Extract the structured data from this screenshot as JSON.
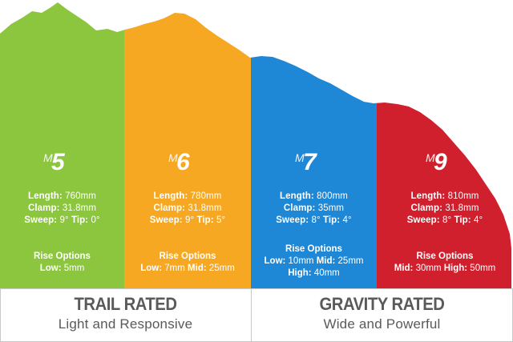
{
  "colors": {
    "m5": "#8cc63f",
    "m6": "#f7a823",
    "m7": "#1f88d6",
    "m9": "#d0202e"
  },
  "models": [
    {
      "id": "m5",
      "digit": "5",
      "specs": [
        {
          "label": "Length:",
          "value": " 760mm"
        },
        {
          "label": "Clamp:",
          "value": " 31.8mm"
        },
        {
          "label": "Sweep:",
          "value": " 9°",
          "label2": " Tip:",
          "value2": " 0°"
        }
      ],
      "rise_title": "Rise Options",
      "rise_lines": [
        [
          {
            "label": "Low:",
            "value": " 5mm"
          }
        ]
      ]
    },
    {
      "id": "m6",
      "digit": "6",
      "specs": [
        {
          "label": "Length:",
          "value": " 780mm"
        },
        {
          "label": "Clamp:",
          "value": " 31.8mm"
        },
        {
          "label": "Sweep:",
          "value": " 9°",
          "label2": " Tip:",
          "value2": " 5°"
        }
      ],
      "rise_title": "Rise Options",
      "rise_lines": [
        [
          {
            "label": "Low:",
            "value": " 7mm"
          },
          {
            "label": " Mid:",
            "value": " 25mm"
          }
        ]
      ]
    },
    {
      "id": "m7",
      "digit": "7",
      "specs": [
        {
          "label": "Length:",
          "value": " 800mm"
        },
        {
          "label": "Clamp:",
          "value": " 35mm"
        },
        {
          "label": "Sweep:",
          "value": " 8°",
          "label2": " Tip:",
          "value2": " 4°"
        }
      ],
      "rise_title": "Rise Options",
      "rise_lines": [
        [
          {
            "label": "Low:",
            "value": " 10mm"
          },
          {
            "label": " Mid:",
            "value": " 25mm"
          }
        ],
        [
          {
            "label": "High:",
            "value": " 40mm"
          }
        ]
      ]
    },
    {
      "id": "m9",
      "digit": "9",
      "specs": [
        {
          "label": "Length:",
          "value": " 810mm"
        },
        {
          "label": "Clamp:",
          "value": " 31.8mm"
        },
        {
          "label": "Sweep:",
          "value": " 8°",
          "label2": " Tip:",
          "value2": " 4°"
        }
      ],
      "rise_title": "Rise Options",
      "rise_lines": [
        [
          {
            "label": "Mid:",
            "value": " 30mm"
          },
          {
            "label": " High:",
            "value": " 50mm"
          }
        ]
      ]
    }
  ],
  "ratings": [
    {
      "title": "TRAIL RATED",
      "subtitle": "Light and Responsive"
    },
    {
      "title": "GRAVITY RATED",
      "subtitle": "Wide and Powerful"
    }
  ]
}
